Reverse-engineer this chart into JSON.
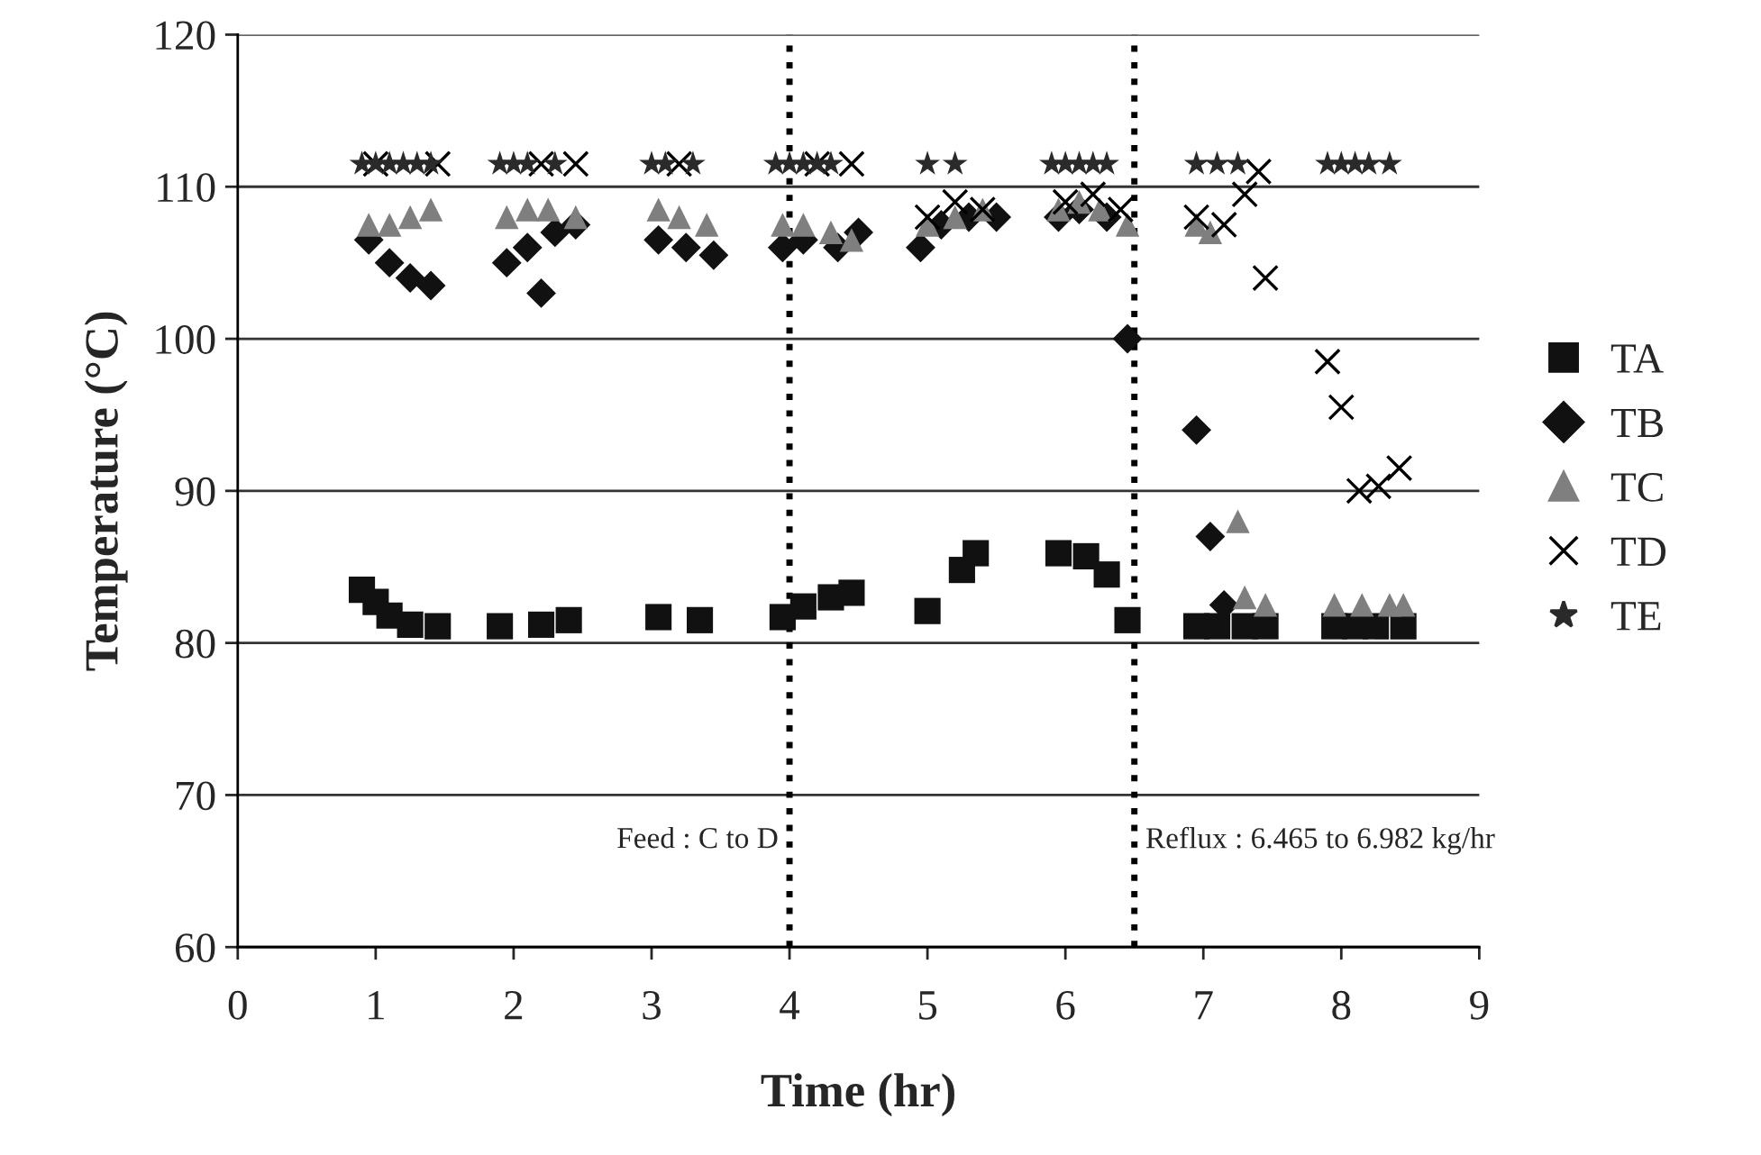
{
  "chart_data": {
    "type": "scatter",
    "xlabel": "Time (hr)",
    "ylabel": "Temperature (°C)",
    "xlim": [
      0,
      9
    ],
    "xticks": [
      0,
      1,
      2,
      3,
      4,
      5,
      6,
      7,
      8,
      9
    ],
    "ylim": [
      60,
      120
    ],
    "yticks": [
      60,
      70,
      80,
      90,
      100,
      110,
      120
    ],
    "grid": "y",
    "legend": "right",
    "ref_lines": [
      {
        "axis": "x",
        "value": 4,
        "line_style": "dotted",
        "color": "#000000"
      },
      {
        "axis": "x",
        "value": 6.5,
        "line_style": "dotted",
        "color": "#000000"
      }
    ],
    "annotations": [
      {
        "text": "Feed : C to D",
        "x": 4,
        "y": 67
      },
      {
        "text": "Reflux : 6.465 to 6.982 kg/hr",
        "x": 6.5,
        "y": 67
      }
    ],
    "series": [
      {
        "name": "TA",
        "color": "#111111",
        "marker": "square",
        "x": [
          0.9,
          1.0,
          1.1,
          1.25,
          1.45,
          1.9,
          2.2,
          2.4,
          3.05,
          3.35,
          3.95,
          4.1,
          4.3,
          4.45,
          5.0,
          5.25,
          5.35,
          5.95,
          6.15,
          6.3,
          6.45,
          6.95,
          7.1,
          7.3,
          7.45,
          7.95,
          8.1,
          8.25,
          8.45
        ],
        "values": [
          83.5,
          82.7,
          81.8,
          81.2,
          81.1,
          81.1,
          81.2,
          81.5,
          81.7,
          81.5,
          81.7,
          82.4,
          83.0,
          83.3,
          82.1,
          84.8,
          85.9,
          85.9,
          85.7,
          84.5,
          81.5,
          81.1,
          81.1,
          81.1,
          81.1,
          81.1,
          81.1,
          81.1,
          81.1
        ]
      },
      {
        "name": "TB",
        "color": "#111111",
        "marker": "diamond",
        "x": [
          0.95,
          1.1,
          1.25,
          1.4,
          1.95,
          2.1,
          2.2,
          2.3,
          2.45,
          3.05,
          3.25,
          3.45,
          3.95,
          4.1,
          4.35,
          4.5,
          4.95,
          5.1,
          5.3,
          5.5,
          5.95,
          6.1,
          6.3,
          6.45,
          6.95,
          7.05,
          7.15
        ],
        "values": [
          106.5,
          105,
          104,
          103.5,
          105,
          106,
          103,
          107,
          107.5,
          106.5,
          106,
          105.5,
          106,
          106.5,
          106,
          107,
          106,
          107.5,
          108,
          108,
          108,
          108.5,
          108,
          100,
          94,
          87,
          82.5
        ]
      },
      {
        "name": "TC",
        "color": "#7f7f7f",
        "marker": "triangle",
        "x": [
          0.95,
          1.1,
          1.25,
          1.4,
          1.95,
          2.1,
          2.25,
          2.45,
          3.05,
          3.2,
          3.4,
          3.95,
          4.1,
          4.3,
          4.45,
          5.0,
          5.2,
          5.4,
          5.95,
          6.1,
          6.25,
          6.45,
          6.95,
          7.05,
          7.25,
          7.3,
          7.45,
          7.95,
          8.15,
          8.35,
          8.45
        ],
        "values": [
          107.5,
          107.5,
          108,
          108.5,
          108,
          108.5,
          108.5,
          108,
          108.5,
          108,
          107.5,
          107.5,
          107.5,
          107,
          106.5,
          107.5,
          108,
          108.5,
          108.5,
          109,
          108.5,
          107.5,
          107.5,
          107,
          88,
          83,
          82.5,
          82.5,
          82.5,
          82.5,
          82.5
        ]
      },
      {
        "name": "TD",
        "color": "#000000",
        "marker": "cross",
        "x": [
          1.0,
          1.45,
          2.2,
          2.45,
          3.2,
          4.2,
          4.45,
          5.0,
          5.2,
          5.4,
          6.0,
          6.2,
          6.4,
          6.95,
          7.15,
          7.3,
          7.4,
          7.45,
          7.9,
          8.0,
          8.13,
          8.27,
          8.42
        ],
        "values": [
          111.5,
          111.5,
          111.5,
          111.5,
          111.5,
          111.5,
          111.5,
          108,
          109,
          108.5,
          109,
          109.5,
          108.5,
          108,
          107.5,
          109.5,
          111,
          104,
          98.5,
          95.5,
          90,
          90.3,
          91.5
        ]
      },
      {
        "name": "TE",
        "color": "#2a2a2a",
        "marker": "star",
        "x": [
          0.9,
          1.0,
          1.1,
          1.2,
          1.3,
          1.4,
          1.9,
          2.0,
          2.1,
          2.3,
          3.0,
          3.1,
          3.3,
          3.9,
          4.0,
          4.1,
          4.2,
          4.3,
          5.0,
          5.2,
          5.9,
          6.0,
          6.1,
          6.2,
          6.3,
          6.95,
          7.1,
          7.25,
          7.9,
          8.0,
          8.1,
          8.2,
          8.35
        ],
        "values": [
          111.5,
          111.5,
          111.5,
          111.5,
          111.5,
          111.5,
          111.5,
          111.5,
          111.5,
          111.5,
          111.5,
          111.5,
          111.5,
          111.5,
          111.5,
          111.5,
          111.5,
          111.5,
          111.5,
          111.5,
          111.5,
          111.5,
          111.5,
          111.5,
          111.5,
          111.5,
          111.5,
          111.5,
          111.5,
          111.5,
          111.5,
          111.5,
          111.5
        ]
      }
    ]
  }
}
